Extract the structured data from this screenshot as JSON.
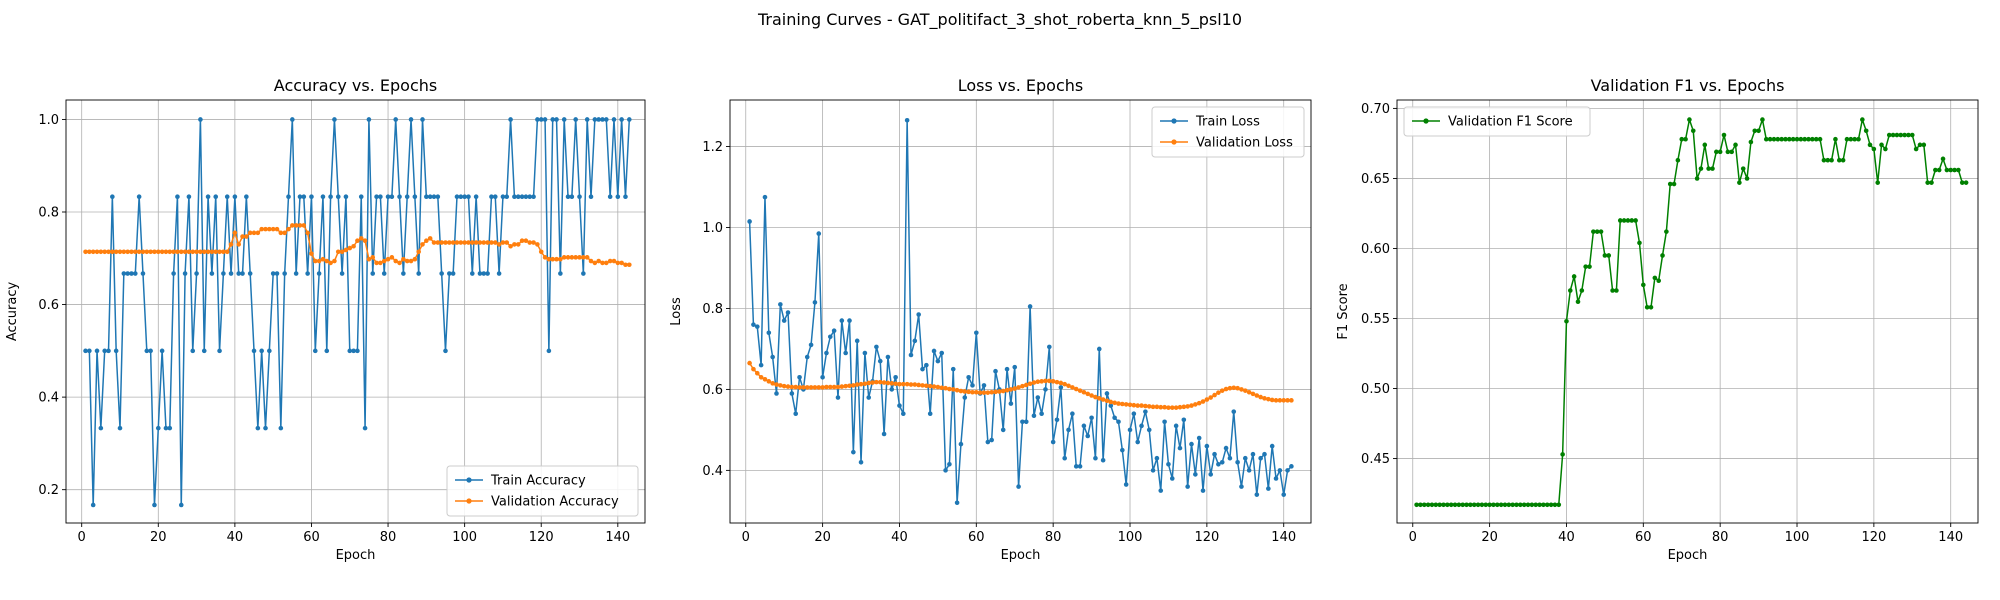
{
  "suptitle": "Training Curves - GAT_politifact_3_shot_roberta_knn_5_psl10",
  "chart_data": [
    {
      "type": "line",
      "title": "Accuracy vs. Epochs",
      "xlabel": "Epoch",
      "ylabel": "Accuracy",
      "xlim": [
        -4.1,
        147.1
      ],
      "ylim": [
        0.128,
        1.042
      ],
      "xticks": [
        0,
        20,
        40,
        60,
        80,
        100,
        120,
        140
      ],
      "yticks": [
        0.2,
        0.4,
        0.6,
        0.8,
        1.0
      ],
      "ytick_labels": [
        "0.2",
        "0.4",
        "0.6",
        "0.8",
        "1.0"
      ],
      "grid": true,
      "legend": "lower-right",
      "series": [
        {
          "name": "Train Accuracy",
          "color": "#1f77b4",
          "values": [
            0.5,
            0.5,
            0.167,
            0.5,
            0.333,
            0.5,
            0.5,
            0.833,
            0.5,
            0.333,
            0.667,
            0.667,
            0.667,
            0.667,
            0.833,
            0.667,
            0.5,
            0.5,
            0.167,
            0.333,
            0.5,
            0.333,
            0.333,
            0.667,
            0.833,
            0.167,
            0.667,
            0.833,
            0.5,
            0.667,
            1.0,
            0.5,
            0.833,
            0.667,
            0.833,
            0.5,
            0.667,
            0.833,
            0.667,
            0.833,
            0.667,
            0.667,
            0.833,
            0.667,
            0.5,
            0.333,
            0.5,
            0.333,
            0.5,
            0.667,
            0.667,
            0.333,
            0.667,
            0.833,
            1.0,
            0.667,
            0.833,
            0.833,
            0.667,
            0.833,
            0.5,
            0.667,
            0.833,
            0.5,
            0.833,
            1.0,
            0.833,
            0.667,
            0.833,
            0.5,
            0.5,
            0.5,
            0.833,
            0.333,
            1.0,
            0.667,
            0.833,
            0.833,
            0.667,
            0.833,
            0.833,
            1.0,
            0.833,
            0.667,
            0.833,
            1.0,
            0.833,
            0.667,
            1.0,
            0.833,
            0.833,
            0.833,
            0.833,
            0.667,
            0.5,
            0.667,
            0.667,
            0.833,
            0.833,
            0.833,
            0.833,
            0.667,
            0.833,
            0.667,
            0.667,
            0.667,
            0.833,
            0.833,
            0.667,
            0.833,
            0.833,
            1.0,
            0.833,
            0.833,
            0.833,
            0.833,
            0.833,
            0.833,
            1.0,
            1.0,
            1.0,
            0.5,
            1.0,
            1.0,
            0.667,
            1.0,
            0.833,
            0.833,
            1.0,
            0.833,
            0.667,
            1.0,
            0.833,
            1.0,
            1.0,
            1.0,
            1.0,
            0.833,
            1.0,
            0.833,
            1.0,
            0.833,
            1.0
          ]
        },
        {
          "name": "Validation Accuracy",
          "color": "#ff7f0e",
          "values": [
            0.714,
            0.714,
            0.714,
            0.714,
            0.714,
            0.714,
            0.714,
            0.714,
            0.714,
            0.714,
            0.714,
            0.714,
            0.714,
            0.714,
            0.714,
            0.714,
            0.714,
            0.714,
            0.714,
            0.714,
            0.714,
            0.714,
            0.714,
            0.714,
            0.714,
            0.714,
            0.714,
            0.714,
            0.714,
            0.714,
            0.714,
            0.714,
            0.714,
            0.714,
            0.714,
            0.714,
            0.714,
            0.714,
            0.73,
            0.755,
            0.73,
            0.747,
            0.747,
            0.755,
            0.755,
            0.755,
            0.763,
            0.763,
            0.763,
            0.763,
            0.763,
            0.755,
            0.755,
            0.763,
            0.771,
            0.771,
            0.771,
            0.771,
            0.755,
            0.71,
            0.694,
            0.694,
            0.698,
            0.694,
            0.69,
            0.694,
            0.714,
            0.714,
            0.718,
            0.722,
            0.726,
            0.738,
            0.743,
            0.738,
            0.698,
            0.702,
            0.69,
            0.69,
            0.694,
            0.698,
            0.702,
            0.694,
            0.69,
            0.698,
            0.694,
            0.694,
            0.698,
            0.714,
            0.73,
            0.738,
            0.743,
            0.734,
            0.734,
            0.734,
            0.734,
            0.734,
            0.734,
            0.734,
            0.734,
            0.734,
            0.734,
            0.734,
            0.734,
            0.734,
            0.734,
            0.734,
            0.734,
            0.734,
            0.73,
            0.734,
            0.734,
            0.726,
            0.73,
            0.73,
            0.738,
            0.738,
            0.734,
            0.734,
            0.73,
            0.714,
            0.702,
            0.698,
            0.698,
            0.698,
            0.698,
            0.702,
            0.702,
            0.702,
            0.702,
            0.702,
            0.702,
            0.702,
            0.694,
            0.69,
            0.694,
            0.69,
            0.69,
            0.694,
            0.694,
            0.69,
            0.69,
            0.686,
            0.686
          ]
        }
      ]
    },
    {
      "type": "line",
      "title": "Loss vs. Epochs",
      "xlabel": "Epoch",
      "ylabel": "Loss",
      "xlim": [
        -4.1,
        147.1
      ],
      "ylim": [
        0.27,
        1.315
      ],
      "xticks": [
        0,
        20,
        40,
        60,
        80,
        100,
        120,
        140
      ],
      "yticks": [
        0.4,
        0.6,
        0.8,
        1.0,
        1.2
      ],
      "ytick_labels": [
        "0.4",
        "0.6",
        "0.8",
        "1.0",
        "1.2"
      ],
      "grid": true,
      "legend": "top-right",
      "series": [
        {
          "name": "Train Loss",
          "color": "#1f77b4",
          "values": [
            1.015,
            0.76,
            0.755,
            0.66,
            1.075,
            0.74,
            0.68,
            0.59,
            0.81,
            0.77,
            0.79,
            0.59,
            0.54,
            0.63,
            0.6,
            0.68,
            0.71,
            0.815,
            0.985,
            0.63,
            0.69,
            0.73,
            0.745,
            0.58,
            0.77,
            0.69,
            0.77,
            0.445,
            0.72,
            0.42,
            0.69,
            0.58,
            0.62,
            0.705,
            0.67,
            0.49,
            0.68,
            0.6,
            0.63,
            0.56,
            0.54,
            1.265,
            0.685,
            0.72,
            0.785,
            0.65,
            0.66,
            0.54,
            0.695,
            0.67,
            0.69,
            0.4,
            0.415,
            0.65,
            0.32,
            0.465,
            0.58,
            0.63,
            0.61,
            0.74,
            0.59,
            0.61,
            0.47,
            0.475,
            0.645,
            0.6,
            0.5,
            0.65,
            0.565,
            0.655,
            0.36,
            0.52,
            0.52,
            0.805,
            0.535,
            0.58,
            0.54,
            0.6,
            0.705,
            0.47,
            0.525,
            0.605,
            0.43,
            0.5,
            0.54,
            0.41,
            0.41,
            0.51,
            0.485,
            0.53,
            0.43,
            0.7,
            0.425,
            0.59,
            0.56,
            0.53,
            0.52,
            0.45,
            0.365,
            0.5,
            0.54,
            0.47,
            0.51,
            0.545,
            0.5,
            0.4,
            0.43,
            0.35,
            0.52,
            0.415,
            0.38,
            0.51,
            0.455,
            0.525,
            0.36,
            0.465,
            0.39,
            0.48,
            0.35,
            0.46,
            0.39,
            0.44,
            0.415,
            0.42,
            0.455,
            0.43,
            0.545,
            0.42,
            0.36,
            0.43,
            0.4,
            0.44,
            0.34,
            0.43,
            0.44,
            0.355,
            0.46,
            0.38,
            0.4,
            0.34,
            0.4,
            0.41
          ]
        },
        {
          "name": "Validation Loss",
          "color": "#ff7f0e",
          "values": [
            0.665,
            0.65,
            0.64,
            0.63,
            0.625,
            0.62,
            0.615,
            0.612,
            0.61,
            0.608,
            0.607,
            0.606,
            0.606,
            0.605,
            0.605,
            0.605,
            0.605,
            0.605,
            0.605,
            0.605,
            0.606,
            0.606,
            0.606,
            0.606,
            0.607,
            0.608,
            0.609,
            0.61,
            0.612,
            0.613,
            0.614,
            0.616,
            0.617,
            0.618,
            0.618,
            0.617,
            0.616,
            0.615,
            0.614,
            0.613,
            0.613,
            0.613,
            0.612,
            0.612,
            0.611,
            0.61,
            0.609,
            0.608,
            0.607,
            0.606,
            0.604,
            0.603,
            0.601,
            0.6,
            0.598,
            0.596,
            0.595,
            0.594,
            0.593,
            0.593,
            0.592,
            0.592,
            0.592,
            0.593,
            0.594,
            0.595,
            0.596,
            0.598,
            0.6,
            0.602,
            0.605,
            0.608,
            0.611,
            0.614,
            0.617,
            0.619,
            0.62,
            0.621,
            0.621,
            0.62,
            0.618,
            0.616,
            0.613,
            0.609,
            0.605,
            0.601,
            0.597,
            0.593,
            0.589,
            0.585,
            0.581,
            0.578,
            0.575,
            0.572,
            0.569,
            0.567,
            0.565,
            0.564,
            0.563,
            0.562,
            0.561,
            0.56,
            0.56,
            0.559,
            0.558,
            0.557,
            0.557,
            0.556,
            0.556,
            0.555,
            0.555,
            0.555,
            0.556,
            0.557,
            0.558,
            0.56,
            0.563,
            0.566,
            0.57,
            0.575,
            0.58,
            0.586,
            0.592,
            0.597,
            0.601,
            0.603,
            0.604,
            0.603,
            0.6,
            0.597,
            0.593,
            0.589,
            0.585,
            0.581,
            0.578,
            0.576,
            0.574,
            0.573,
            0.573,
            0.573,
            0.573,
            0.573
          ]
        }
      ]
    },
    {
      "type": "line",
      "title": "Validation F1 vs. Epochs",
      "xlabel": "Epoch",
      "ylabel": "F1 Score",
      "xlim": [
        -4.1,
        147.1
      ],
      "ylim": [
        0.404,
        0.706
      ],
      "xticks": [
        0,
        20,
        40,
        60,
        80,
        100,
        120,
        140
      ],
      "yticks": [
        0.45,
        0.5,
        0.55,
        0.6,
        0.65,
        0.7
      ],
      "ytick_labels": [
        "0.45",
        "0.50",
        "0.55",
        "0.60",
        "0.65",
        "0.70"
      ],
      "grid": true,
      "legend": "top-left",
      "series": [
        {
          "name": "Validation F1 Score",
          "color": "#008000",
          "values": [
            0.417,
            0.417,
            0.417,
            0.417,
            0.417,
            0.417,
            0.417,
            0.417,
            0.417,
            0.417,
            0.417,
            0.417,
            0.417,
            0.417,
            0.417,
            0.417,
            0.417,
            0.417,
            0.417,
            0.417,
            0.417,
            0.417,
            0.417,
            0.417,
            0.417,
            0.417,
            0.417,
            0.417,
            0.417,
            0.417,
            0.417,
            0.417,
            0.417,
            0.417,
            0.417,
            0.417,
            0.417,
            0.417,
            0.453,
            0.548,
            0.57,
            0.58,
            0.562,
            0.57,
            0.587,
            0.587,
            0.612,
            0.612,
            0.612,
            0.595,
            0.595,
            0.57,
            0.57,
            0.62,
            0.62,
            0.62,
            0.62,
            0.62,
            0.604,
            0.574,
            0.558,
            0.558,
            0.579,
            0.577,
            0.595,
            0.612,
            0.646,
            0.646,
            0.663,
            0.678,
            0.678,
            0.692,
            0.684,
            0.65,
            0.657,
            0.674,
            0.657,
            0.657,
            0.669,
            0.669,
            0.681,
            0.669,
            0.669,
            0.674,
            0.647,
            0.657,
            0.65,
            0.676,
            0.684,
            0.684,
            0.692,
            0.678,
            0.678,
            0.678,
            0.678,
            0.678,
            0.678,
            0.678,
            0.678,
            0.678,
            0.678,
            0.678,
            0.678,
            0.678,
            0.678,
            0.678,
            0.663,
            0.663,
            0.663,
            0.678,
            0.663,
            0.663,
            0.678,
            0.678,
            0.678,
            0.678,
            0.692,
            0.684,
            0.674,
            0.671,
            0.647,
            0.674,
            0.671,
            0.681,
            0.681,
            0.681,
            0.681,
            0.681,
            0.681,
            0.681,
            0.671,
            0.674,
            0.674,
            0.647,
            0.647,
            0.656,
            0.656,
            0.664,
            0.656,
            0.656,
            0.656,
            0.656,
            0.647,
            0.647
          ]
        }
      ]
    }
  ]
}
